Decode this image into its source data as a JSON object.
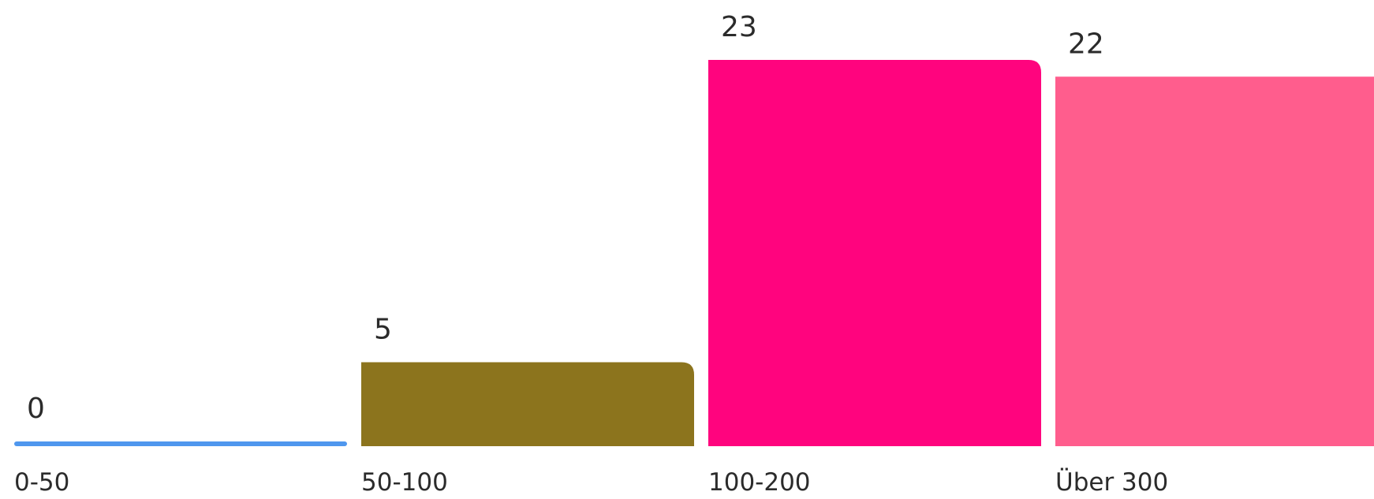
{
  "chart_data": {
    "type": "bar",
    "categories": [
      "0-50",
      "50-100",
      "100-200",
      "Über 300"
    ],
    "values": [
      0,
      5,
      23,
      22
    ],
    "colors": [
      "#4f97ee",
      "#8c741d",
      "#ff047e",
      "#ff5d8d"
    ],
    "title": "",
    "xlabel": "",
    "ylabel": "",
    "ylim": [
      0,
      23
    ],
    "grid": false,
    "legend": "none"
  }
}
